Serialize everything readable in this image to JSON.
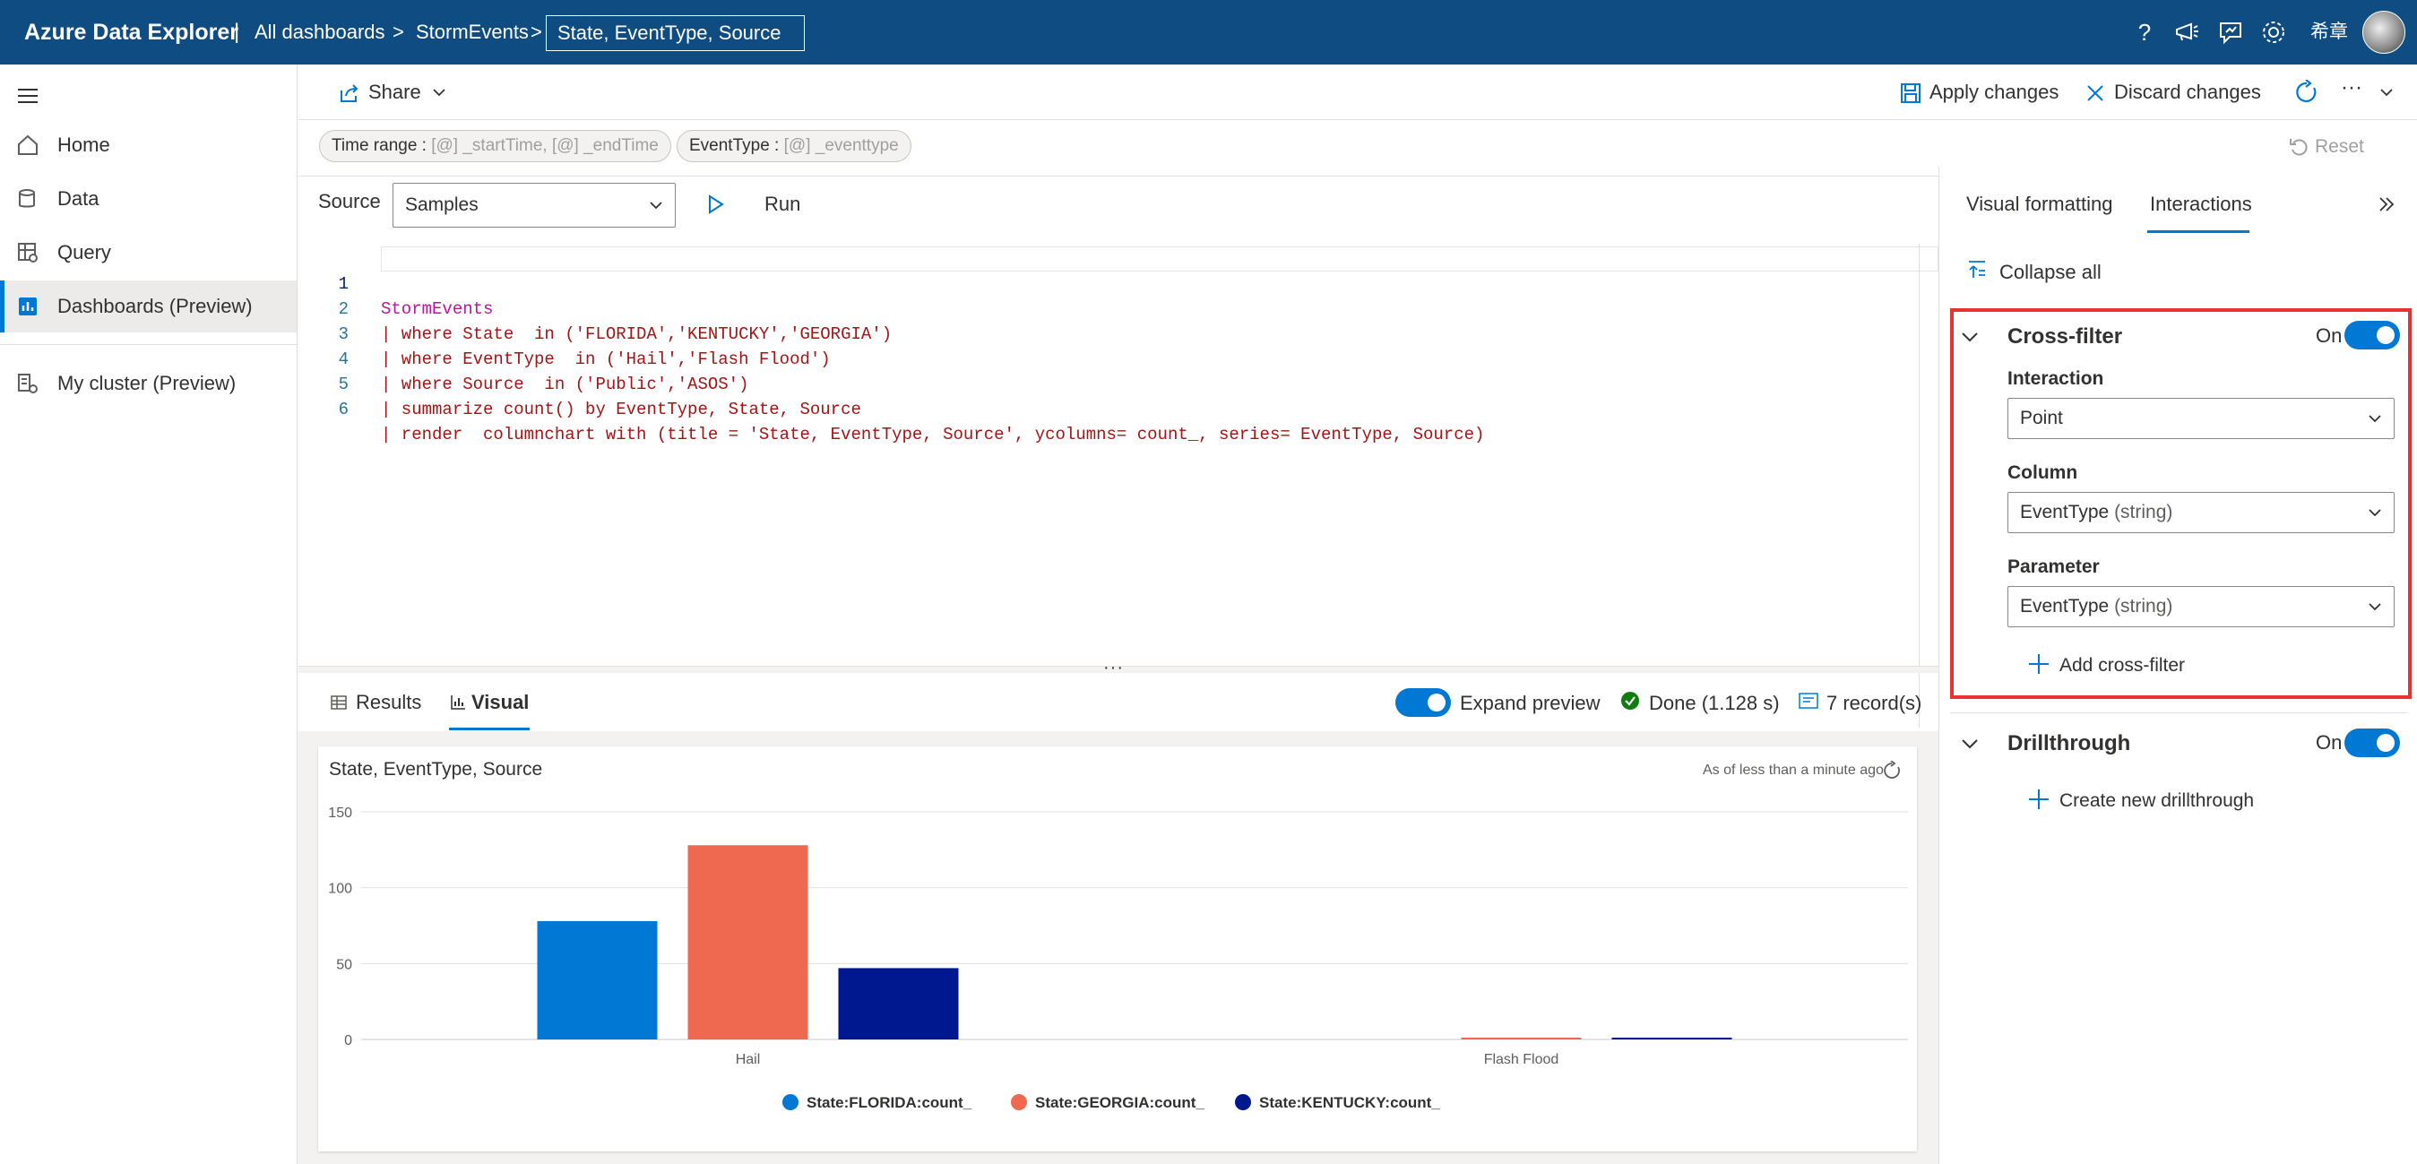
{
  "topbar": {
    "app_title": "Azure Data Explorer",
    "separator": "|",
    "breadcrumb_all": "All dashboards",
    "breadcrumb_chevron": ">",
    "breadcrumb_dashboard": "StormEvents",
    "breadcrumb_tile": "State, EventType, Source",
    "user_name": "希章",
    "icons": [
      "help-icon",
      "announcement-icon",
      "feedback-icon",
      "settings-icon",
      "avatar"
    ]
  },
  "sidebar": {
    "items": [
      {
        "label": "Home",
        "icon": "home-icon"
      },
      {
        "label": "Data",
        "icon": "data-icon"
      },
      {
        "label": "Query",
        "icon": "query-icon"
      },
      {
        "label": "Dashboards (Preview)",
        "icon": "dashboard-icon",
        "active": true
      },
      {
        "label": "My cluster (Preview)",
        "icon": "cluster-icon"
      }
    ]
  },
  "toolbar": {
    "share": "Share",
    "apply": "Apply changes",
    "discard": "Discard changes",
    "more": "···"
  },
  "params": {
    "time_range_label": "Time range : ",
    "time_range_value": "[@] _startTime, [@] _endTime",
    "event_type_label": "EventType : ",
    "event_type_value": "[@] _eventtype",
    "reset": "Reset"
  },
  "editor": {
    "source_label": "Source",
    "source_value": "Samples",
    "run": "Run",
    "lines": [
      {
        "n": "1",
        "t": "StormEvents"
      },
      {
        "n": "2",
        "t": "| where State  in ('FLORIDA','KENTUCKY','GEORGIA')"
      },
      {
        "n": "3",
        "t": "| where EventType  in ('Hail','Flash Flood')"
      },
      {
        "n": "4",
        "t": "| where Source  in ('Public','ASOS')"
      },
      {
        "n": "5",
        "t": "| summarize count() by EventType, State, Source"
      },
      {
        "n": "6",
        "t": "| render  columnchart with (title = 'State, EventType, Source', ycolumns= count_, series= EventType, Source)"
      }
    ]
  },
  "results_bar": {
    "tab_results": "Results",
    "tab_visual": "Visual",
    "expand_preview": "Expand preview",
    "done": "Done (1.128 s)",
    "records": "7 record(s)"
  },
  "chart_card": {
    "as_of": "As of less than a minute ago"
  },
  "chart_data": {
    "type": "bar",
    "title": "State, EventType, Source",
    "categories": [
      "Hail",
      "Flash Flood"
    ],
    "series": [
      {
        "name": "State:FLORIDA:count_",
        "color": "#0078d4",
        "values": [
          78,
          0
        ]
      },
      {
        "name": "State:GEORGIA:count_",
        "color": "#ef6950",
        "values": [
          128,
          1
        ]
      },
      {
        "name": "State:KENTUCKY:count_",
        "color": "#00188f",
        "values": [
          47,
          1
        ]
      }
    ],
    "yticks": [
      "0",
      "50",
      "100",
      "150"
    ],
    "ylim": [
      0,
      150
    ],
    "legend": "bottom",
    "grid": true
  },
  "right_panel": {
    "tab_formatting": "Visual formatting",
    "tab_interactions": "Interactions",
    "collapse_all": "Collapse all",
    "crossfilter": {
      "title": "Cross-filter",
      "state": "On",
      "interaction_label": "Interaction",
      "interaction_value": "Point",
      "column_label": "Column",
      "column_value": "EventType",
      "column_hint": " (string)",
      "parameter_label": "Parameter",
      "parameter_value": "EventType",
      "parameter_hint": " (string)",
      "add": "Add cross-filter",
      "highlight_color": "#e3342f"
    },
    "drillthrough": {
      "title": "Drillthrough",
      "state": "On",
      "create": "Create new drillthrough"
    }
  }
}
